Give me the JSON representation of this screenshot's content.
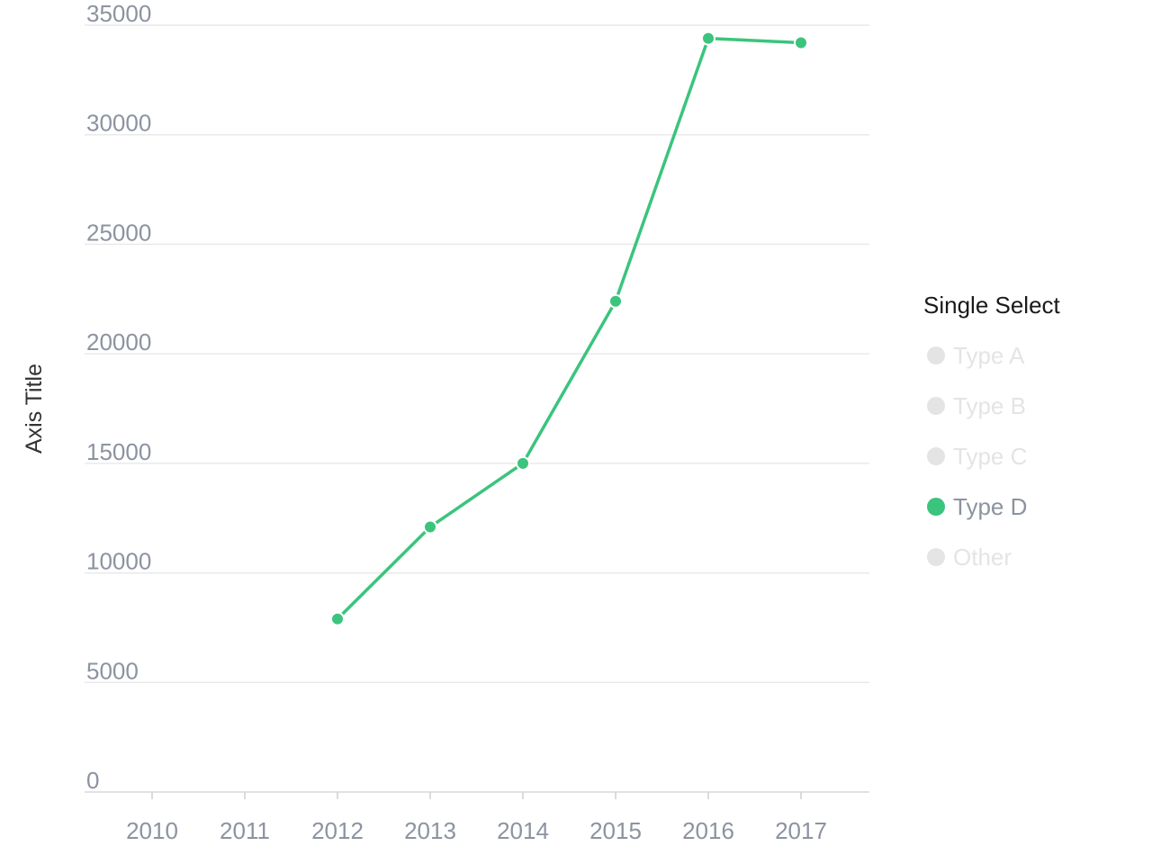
{
  "chart_data": {
    "type": "line",
    "categories": [
      "2010",
      "2011",
      "2012",
      "2013",
      "2014",
      "2015",
      "2016",
      "2017"
    ],
    "series": [
      {
        "name": "Type D",
        "color": "#3bc47d",
        "values": [
          null,
          null,
          7900,
          12100,
          15000,
          22400,
          34400,
          34200
        ]
      }
    ],
    "ylabel": "Axis Title",
    "ylim": [
      0,
      35000
    ],
    "yticks": [
      "0",
      "5000",
      "10000",
      "15000",
      "20000",
      "25000",
      "30000",
      "35000"
    ],
    "grid": true,
    "legend_placement": "right"
  },
  "legend": {
    "title": "Single Select",
    "active_color": "#3bc47d",
    "inactive_color": "#e4e4e4",
    "active_text_color": "#8c93a0",
    "inactive_text_color": "#e4e4e4",
    "items": [
      {
        "label": "Type A",
        "active": false
      },
      {
        "label": "Type B",
        "active": false
      },
      {
        "label": "Type C",
        "active": false
      },
      {
        "label": "Type D",
        "active": true
      },
      {
        "label": "Other",
        "active": false
      }
    ]
  }
}
